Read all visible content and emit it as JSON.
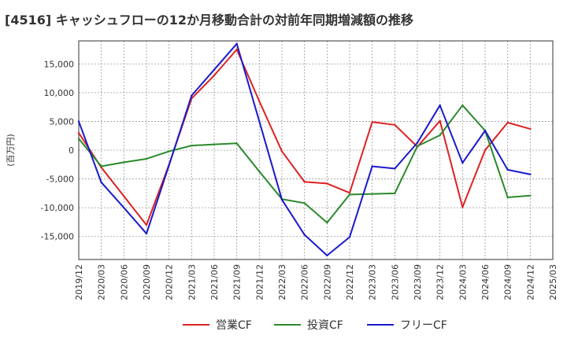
{
  "chart_data": {
    "type": "line",
    "title": "[4516]  キャッシュフローの12か月移動合計の対前年同期増減額の推移",
    "ylabel": "(百万円)",
    "xlabel": "",
    "x": [
      "2019/12",
      "2020/03",
      "2020/06",
      "2020/09",
      "2020/12",
      "2021/03",
      "2021/06",
      "2021/09",
      "2021/12",
      "2022/03",
      "2022/06",
      "2022/09",
      "2022/12",
      "2023/03",
      "2023/06",
      "2023/09",
      "2023/12",
      "2024/03",
      "2024/06",
      "2024/09",
      "2024/12",
      "2025/03"
    ],
    "ylim": [
      -19000,
      19000
    ],
    "yticks": [
      15000,
      10000,
      5000,
      0,
      -5000,
      -10000,
      -15000
    ],
    "ytick_labels": [
      "15,000",
      "10,000",
      "5,000",
      "0",
      "-5,000",
      "-10,000",
      "-15,000"
    ],
    "grid": true,
    "legend_position": "bottom",
    "series": [
      {
        "name": "営業CF",
        "color": "#dd2222",
        "values": [
          3000,
          -3000,
          -8000,
          -13000,
          -2500,
          9000,
          13000,
          17500,
          8500,
          -200,
          -5500,
          -5800,
          -7400,
          4900,
          4400,
          600,
          5100,
          -9900,
          0,
          4800,
          3700,
          null
        ]
      },
      {
        "name": "投資CF",
        "color": "#2a8a2a",
        "values": [
          2000,
          -2800,
          -2100,
          -1500,
          -200,
          800,
          1000,
          1200,
          -3700,
          -8500,
          -9200,
          -12600,
          -7700,
          -7600,
          -7500,
          700,
          2600,
          7800,
          3400,
          -8200,
          -7900,
          null
        ]
      },
      {
        "name": "フリーCF",
        "color": "#1a1acc",
        "values": [
          5000,
          -5600,
          -10000,
          -14500,
          -2600,
          9500,
          14000,
          18500,
          5000,
          -8600,
          -14700,
          -18300,
          -15100,
          -2800,
          -3200,
          1300,
          7800,
          -2200,
          3400,
          -3400,
          -4200,
          null
        ]
      }
    ]
  }
}
